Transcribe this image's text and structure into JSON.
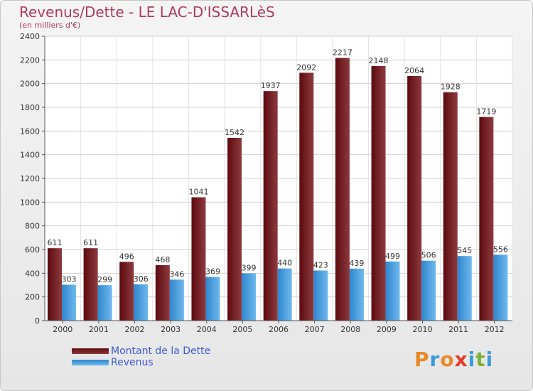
{
  "title": "Revenus/Dette - LE LAC-D'ISSARLèS",
  "subtitle": "(en milliers d'€)",
  "logo_text": "Proxiti",
  "colors": {
    "dette_dark": "#5c0a0e",
    "dette_light": "#8e3a3e",
    "revenus_dark": "#2f86cc",
    "revenus_light": "#6fb9ef",
    "title": "#b03a5b",
    "legend_text": "#3b5bd6",
    "logo": [
      "#e8892b",
      "#3a9ad9",
      "#e8892b",
      "#e23a2a",
      "#3a9ad9",
      "#7ab23a",
      "#3a9ad9"
    ]
  },
  "chart_data": {
    "type": "bar",
    "categories": [
      "2000",
      "2001",
      "2002",
      "2003",
      "2004",
      "2005",
      "2006",
      "2007",
      "2008",
      "2009",
      "2010",
      "2011",
      "2012"
    ],
    "series": [
      {
        "name": "Montant de la Dette",
        "values": [
          611,
          611,
          496,
          468,
          1041,
          1542,
          1937,
          2092,
          2217,
          2148,
          2064,
          1928,
          1719
        ]
      },
      {
        "name": "Revenus",
        "values": [
          303,
          299,
          306,
          346,
          369,
          399,
          440,
          423,
          439,
          499,
          506,
          545,
          556
        ]
      }
    ],
    "ylim": [
      0,
      2400
    ],
    "yticks": [
      0,
      200,
      400,
      600,
      800,
      1000,
      1200,
      1400,
      1600,
      1800,
      2000,
      2200,
      2400
    ],
    "grid": true,
    "legend_position": "bottom-left"
  }
}
